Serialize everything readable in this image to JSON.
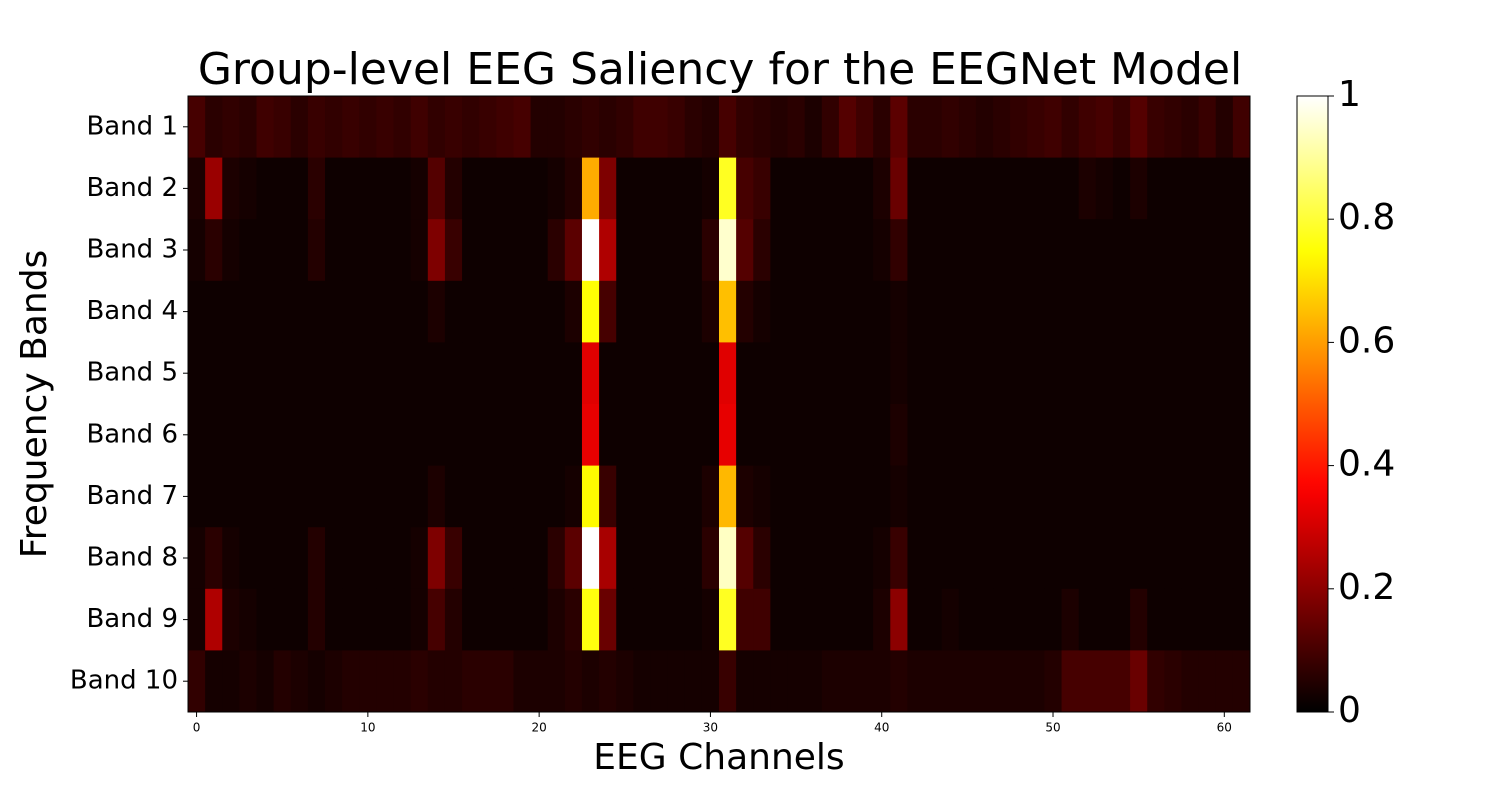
{
  "chart_data": {
    "type": "heatmap",
    "title": "Group-level EEG Saliency for the EEGNet Model",
    "xlabel": "EEG Channels",
    "ylabel": "Frequency Bands",
    "categories": [
      "Band 1",
      "Band 2",
      "Band 3",
      "Band 4",
      "Band 5",
      "Band 6",
      "Band 7",
      "Band 8",
      "Band 9",
      "Band 10"
    ],
    "x": [
      0,
      1,
      2,
      3,
      4,
      5,
      6,
      7,
      8,
      9,
      10,
      11,
      12,
      13,
      14,
      15,
      16,
      17,
      18,
      19,
      20,
      21,
      22,
      23,
      24,
      25,
      26,
      27,
      28,
      29,
      30,
      31,
      32,
      33,
      34,
      35,
      36,
      37,
      38,
      39,
      40,
      41,
      42,
      43,
      44,
      45,
      46,
      47,
      48,
      49,
      50,
      51,
      52,
      53,
      54,
      55,
      56,
      57,
      58,
      59,
      60,
      61
    ],
    "xlim": [
      -0.5,
      61.5
    ],
    "xticks": [
      0,
      10,
      20,
      30,
      40,
      50,
      60
    ],
    "cmap": "hot",
    "colorbar_lim": [
      0,
      1
    ],
    "colorbar_ticks": [
      0,
      0.2,
      0.4,
      0.6,
      0.8,
      1
    ],
    "values": [
      [
        0.1,
        0.06,
        0.07,
        0.06,
        0.09,
        0.08,
        0.06,
        0.08,
        0.07,
        0.08,
        0.07,
        0.08,
        0.07,
        0.09,
        0.07,
        0.08,
        0.07,
        0.08,
        0.09,
        0.1,
        0.05,
        0.05,
        0.06,
        0.07,
        0.06,
        0.07,
        0.09,
        0.09,
        0.08,
        0.06,
        0.05,
        0.1,
        0.07,
        0.06,
        0.05,
        0.06,
        0.04,
        0.07,
        0.12,
        0.09,
        0.06,
        0.13,
        0.06,
        0.06,
        0.07,
        0.06,
        0.05,
        0.06,
        0.07,
        0.08,
        0.09,
        0.07,
        0.09,
        0.1,
        0.08,
        0.12,
        0.08,
        0.07,
        0.06,
        0.08,
        0.05,
        0.09
      ],
      [
        0.04,
        0.22,
        0.04,
        0.03,
        0.02,
        0.02,
        0.02,
        0.06,
        0.02,
        0.02,
        0.02,
        0.02,
        0.02,
        0.03,
        0.12,
        0.05,
        0.02,
        0.02,
        0.02,
        0.02,
        0.02,
        0.03,
        0.05,
        0.62,
        0.18,
        0.02,
        0.02,
        0.02,
        0.02,
        0.02,
        0.03,
        0.78,
        0.1,
        0.08,
        0.02,
        0.02,
        0.02,
        0.02,
        0.02,
        0.02,
        0.04,
        0.15,
        0.02,
        0.02,
        0.02,
        0.02,
        0.02,
        0.02,
        0.02,
        0.02,
        0.02,
        0.02,
        0.04,
        0.03,
        0.02,
        0.04,
        0.02,
        0.02,
        0.02,
        0.02,
        0.02,
        0.02
      ],
      [
        0.03,
        0.06,
        0.03,
        0.02,
        0.02,
        0.02,
        0.02,
        0.05,
        0.02,
        0.02,
        0.02,
        0.02,
        0.02,
        0.03,
        0.18,
        0.08,
        0.02,
        0.02,
        0.02,
        0.02,
        0.02,
        0.06,
        0.13,
        1.0,
        0.25,
        0.02,
        0.02,
        0.02,
        0.02,
        0.02,
        0.06,
        0.95,
        0.12,
        0.06,
        0.02,
        0.02,
        0.02,
        0.02,
        0.02,
        0.02,
        0.03,
        0.07,
        0.02,
        0.02,
        0.02,
        0.02,
        0.02,
        0.02,
        0.02,
        0.02,
        0.02,
        0.02,
        0.02,
        0.02,
        0.02,
        0.02,
        0.02,
        0.02,
        0.02,
        0.02,
        0.02,
        0.02
      ],
      [
        0.02,
        0.02,
        0.02,
        0.02,
        0.02,
        0.02,
        0.02,
        0.02,
        0.02,
        0.02,
        0.02,
        0.02,
        0.02,
        0.02,
        0.04,
        0.02,
        0.02,
        0.02,
        0.02,
        0.02,
        0.02,
        0.02,
        0.04,
        0.75,
        0.1,
        0.02,
        0.02,
        0.02,
        0.02,
        0.02,
        0.04,
        0.65,
        0.05,
        0.03,
        0.02,
        0.02,
        0.02,
        0.02,
        0.02,
        0.02,
        0.02,
        0.03,
        0.02,
        0.02,
        0.02,
        0.02,
        0.02,
        0.02,
        0.02,
        0.02,
        0.02,
        0.02,
        0.02,
        0.02,
        0.02,
        0.02,
        0.02,
        0.02,
        0.02,
        0.02,
        0.02,
        0.02
      ],
      [
        0.02,
        0.02,
        0.02,
        0.02,
        0.02,
        0.02,
        0.02,
        0.02,
        0.02,
        0.02,
        0.02,
        0.02,
        0.02,
        0.02,
        0.02,
        0.02,
        0.02,
        0.02,
        0.02,
        0.02,
        0.02,
        0.02,
        0.02,
        0.32,
        0.02,
        0.02,
        0.02,
        0.02,
        0.02,
        0.02,
        0.02,
        0.32,
        0.02,
        0.02,
        0.02,
        0.02,
        0.02,
        0.02,
        0.02,
        0.02,
        0.02,
        0.03,
        0.02,
        0.02,
        0.02,
        0.02,
        0.02,
        0.02,
        0.02,
        0.02,
        0.02,
        0.02,
        0.02,
        0.02,
        0.02,
        0.02,
        0.02,
        0.02,
        0.02,
        0.02,
        0.02,
        0.02
      ],
      [
        0.02,
        0.02,
        0.02,
        0.02,
        0.02,
        0.02,
        0.02,
        0.02,
        0.02,
        0.02,
        0.02,
        0.02,
        0.02,
        0.02,
        0.02,
        0.02,
        0.02,
        0.02,
        0.02,
        0.02,
        0.02,
        0.02,
        0.02,
        0.33,
        0.02,
        0.02,
        0.02,
        0.02,
        0.02,
        0.02,
        0.02,
        0.33,
        0.02,
        0.02,
        0.02,
        0.02,
        0.02,
        0.02,
        0.02,
        0.02,
        0.02,
        0.04,
        0.02,
        0.02,
        0.02,
        0.02,
        0.02,
        0.02,
        0.02,
        0.02,
        0.02,
        0.02,
        0.02,
        0.02,
        0.02,
        0.02,
        0.02,
        0.02,
        0.02,
        0.02,
        0.02,
        0.02
      ],
      [
        0.02,
        0.02,
        0.02,
        0.02,
        0.02,
        0.02,
        0.02,
        0.02,
        0.02,
        0.02,
        0.02,
        0.02,
        0.02,
        0.02,
        0.04,
        0.02,
        0.02,
        0.02,
        0.02,
        0.02,
        0.02,
        0.02,
        0.03,
        0.74,
        0.08,
        0.02,
        0.02,
        0.02,
        0.02,
        0.02,
        0.04,
        0.64,
        0.04,
        0.03,
        0.02,
        0.02,
        0.02,
        0.02,
        0.02,
        0.02,
        0.02,
        0.03,
        0.02,
        0.02,
        0.02,
        0.02,
        0.02,
        0.02,
        0.02,
        0.02,
        0.02,
        0.02,
        0.02,
        0.02,
        0.02,
        0.02,
        0.02,
        0.02,
        0.02,
        0.02,
        0.02,
        0.02
      ],
      [
        0.03,
        0.06,
        0.03,
        0.02,
        0.02,
        0.02,
        0.02,
        0.05,
        0.02,
        0.02,
        0.02,
        0.02,
        0.02,
        0.03,
        0.18,
        0.08,
        0.02,
        0.02,
        0.02,
        0.02,
        0.02,
        0.06,
        0.13,
        1.0,
        0.24,
        0.02,
        0.02,
        0.02,
        0.02,
        0.02,
        0.06,
        0.94,
        0.12,
        0.06,
        0.02,
        0.02,
        0.02,
        0.02,
        0.02,
        0.02,
        0.03,
        0.08,
        0.02,
        0.02,
        0.02,
        0.02,
        0.02,
        0.02,
        0.02,
        0.02,
        0.02,
        0.02,
        0.02,
        0.02,
        0.02,
        0.02,
        0.02,
        0.02,
        0.02,
        0.02,
        0.02,
        0.02
      ],
      [
        0.03,
        0.25,
        0.04,
        0.03,
        0.02,
        0.02,
        0.02,
        0.05,
        0.02,
        0.02,
        0.02,
        0.02,
        0.02,
        0.03,
        0.1,
        0.05,
        0.02,
        0.02,
        0.02,
        0.02,
        0.02,
        0.04,
        0.06,
        0.76,
        0.15,
        0.02,
        0.02,
        0.02,
        0.02,
        0.02,
        0.03,
        0.78,
        0.09,
        0.09,
        0.02,
        0.02,
        0.02,
        0.02,
        0.02,
        0.02,
        0.04,
        0.2,
        0.02,
        0.02,
        0.03,
        0.02,
        0.02,
        0.02,
        0.02,
        0.02,
        0.02,
        0.04,
        0.02,
        0.02,
        0.02,
        0.05,
        0.02,
        0.02,
        0.02,
        0.02,
        0.02,
        0.02
      ],
      [
        0.07,
        0.03,
        0.03,
        0.04,
        0.03,
        0.05,
        0.04,
        0.03,
        0.04,
        0.05,
        0.05,
        0.05,
        0.05,
        0.06,
        0.05,
        0.05,
        0.06,
        0.06,
        0.06,
        0.04,
        0.04,
        0.04,
        0.05,
        0.04,
        0.05,
        0.04,
        0.03,
        0.03,
        0.03,
        0.03,
        0.03,
        0.08,
        0.03,
        0.03,
        0.03,
        0.03,
        0.03,
        0.04,
        0.04,
        0.04,
        0.04,
        0.05,
        0.04,
        0.04,
        0.04,
        0.04,
        0.04,
        0.04,
        0.04,
        0.04,
        0.05,
        0.1,
        0.1,
        0.1,
        0.1,
        0.15,
        0.07,
        0.06,
        0.05,
        0.05,
        0.05,
        0.05
      ]
    ]
  }
}
